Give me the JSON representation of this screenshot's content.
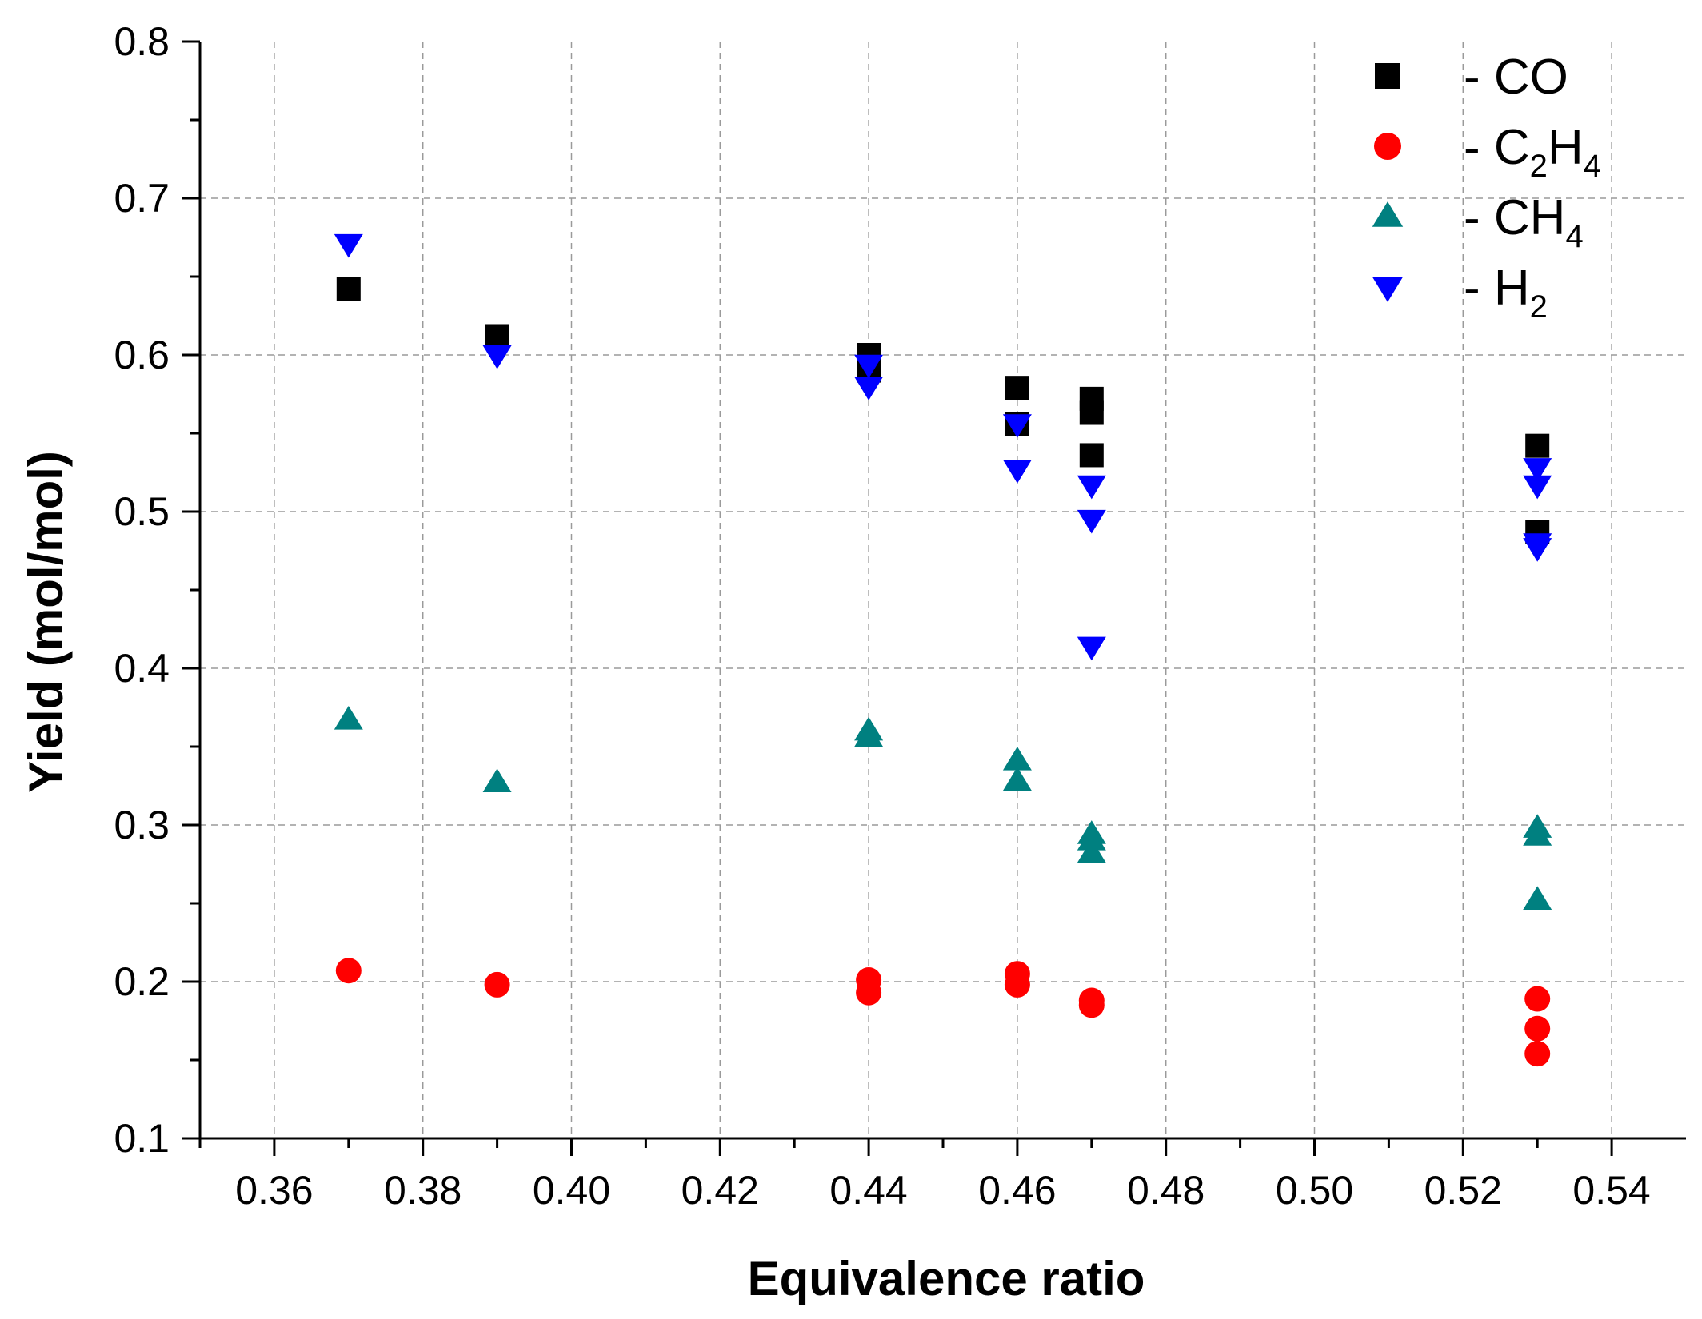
{
  "chart_data": {
    "type": "scatter",
    "title": "",
    "xlabel": "Equivalence ratio",
    "ylabel": "Yield (mol/mol)",
    "xlim": [
      0.35,
      0.55
    ],
    "ylim": [
      0.1,
      0.8
    ],
    "x_ticks": [
      "0.36",
      "0.38",
      "0.40",
      "0.42",
      "0.44",
      "0.46",
      "0.48",
      "0.50",
      "0.52",
      "0.54"
    ],
    "y_ticks": [
      "0.1",
      "0.2",
      "0.3",
      "0.4",
      "0.5",
      "0.6",
      "0.7",
      "0.8"
    ],
    "grid": true,
    "legend_position": "top-right",
    "series": [
      {
        "name": "CO",
        "legend_prefix": "- ",
        "legend_main": "CO",
        "legend_parts": [],
        "marker": "square",
        "color": "#000000",
        "points": [
          [
            0.37,
            0.642
          ],
          [
            0.39,
            0.612
          ],
          [
            0.44,
            0.6
          ],
          [
            0.44,
            0.59
          ],
          [
            0.46,
            0.579
          ],
          [
            0.46,
            0.556
          ],
          [
            0.47,
            0.572
          ],
          [
            0.47,
            0.563
          ],
          [
            0.47,
            0.536
          ],
          [
            0.53,
            0.542
          ],
          [
            0.53,
            0.487
          ]
        ]
      },
      {
        "name": "C2H4",
        "legend_prefix": "- ",
        "legend_main": "",
        "legend_parts": [
          [
            "C",
            "2"
          ],
          [
            "H",
            "4"
          ]
        ],
        "marker": "circle",
        "color": "#ff0000",
        "points": [
          [
            0.37,
            0.207
          ],
          [
            0.39,
            0.198
          ],
          [
            0.44,
            0.201
          ],
          [
            0.44,
            0.193
          ],
          [
            0.46,
            0.205
          ],
          [
            0.46,
            0.198
          ],
          [
            0.47,
            0.188
          ],
          [
            0.47,
            0.185
          ],
          [
            0.53,
            0.189
          ],
          [
            0.53,
            0.17
          ],
          [
            0.53,
            0.154
          ]
        ]
      },
      {
        "name": "CH4",
        "legend_prefix": "- ",
        "legend_main": "",
        "legend_parts": [
          [
            "CH",
            "4"
          ]
        ],
        "marker": "triangle-up",
        "color": "#008080",
        "points": [
          [
            0.37,
            0.367
          ],
          [
            0.39,
            0.327
          ],
          [
            0.44,
            0.36
          ],
          [
            0.44,
            0.356
          ],
          [
            0.46,
            0.341
          ],
          [
            0.46,
            0.328
          ],
          [
            0.47,
            0.294
          ],
          [
            0.47,
            0.29
          ],
          [
            0.47,
            0.282
          ],
          [
            0.53,
            0.298
          ],
          [
            0.53,
            0.293
          ],
          [
            0.53,
            0.252
          ]
        ]
      },
      {
        "name": "H2",
        "legend_prefix": "- ",
        "legend_main": "",
        "legend_parts": [
          [
            "H",
            "2"
          ]
        ],
        "marker": "triangle-down",
        "color": "#0000ff",
        "points": [
          [
            0.37,
            0.671
          ],
          [
            0.39,
            0.6
          ],
          [
            0.44,
            0.594
          ],
          [
            0.44,
            0.58
          ],
          [
            0.46,
            0.556
          ],
          [
            0.46,
            0.527
          ],
          [
            0.47,
            0.517
          ],
          [
            0.47,
            0.495
          ],
          [
            0.47,
            0.414
          ],
          [
            0.53,
            0.528
          ],
          [
            0.53,
            0.517
          ],
          [
            0.53,
            0.48
          ],
          [
            0.53,
            0.477
          ]
        ]
      }
    ]
  }
}
